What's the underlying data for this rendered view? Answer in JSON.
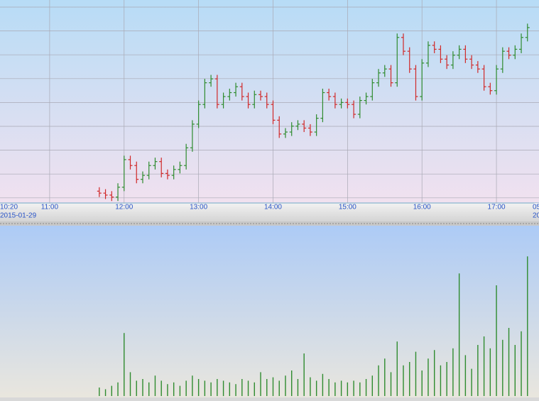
{
  "chart_data": [
    {
      "type": "ohlc",
      "x": [
        "11:40",
        "11:45",
        "11:50",
        "11:55",
        "12:00",
        "12:05",
        "12:10",
        "12:15",
        "12:20",
        "12:25",
        "12:30",
        "12:35",
        "12:40",
        "12:45",
        "12:50",
        "12:55",
        "13:00",
        "13:05",
        "13:10",
        "13:15",
        "13:20",
        "13:25",
        "13:30",
        "13:35",
        "13:40",
        "13:45",
        "13:50",
        "13:55",
        "14:00",
        "14:05",
        "14:10",
        "14:15",
        "14:20",
        "14:25",
        "14:30",
        "14:35",
        "14:40",
        "14:45",
        "14:50",
        "14:55",
        "15:00",
        "15:05",
        "15:10",
        "15:15",
        "15:20",
        "15:25",
        "15:30",
        "15:35",
        "15:40",
        "15:45",
        "15:50",
        "15:55",
        "16:00",
        "16:05",
        "16:10",
        "16:15",
        "16:20",
        "16:25",
        "16:30",
        "16:35",
        "16:40",
        "16:45",
        "16:50",
        "16:55",
        "17:00",
        "17:05",
        "17:10",
        "17:15",
        "17:20",
        "17:25"
      ],
      "open": [
        3,
        2,
        1,
        0,
        5,
        19,
        16,
        9,
        11,
        16,
        18,
        12,
        11,
        14,
        16,
        25,
        37,
        47,
        58,
        60,
        47,
        51,
        53,
        56,
        51,
        47,
        52,
        51,
        47,
        39,
        32,
        33,
        36,
        37,
        35,
        33,
        40,
        53,
        51,
        47,
        48,
        47,
        42,
        49,
        51,
        58,
        63,
        65,
        58,
        81,
        74,
        65,
        51,
        68,
        77,
        75,
        70,
        67,
        72,
        75,
        70,
        67,
        65,
        56,
        54,
        65,
        74,
        72,
        75,
        81
      ],
      "high": [
        5,
        4,
        3,
        7,
        21,
        21,
        18,
        13,
        18,
        20,
        20,
        14,
        16,
        18,
        27,
        39,
        49,
        60,
        62,
        62,
        53,
        55,
        58,
        58,
        53,
        54,
        54,
        53,
        49,
        41,
        35,
        38,
        39,
        39,
        37,
        42,
        55,
        55,
        53,
        50,
        50,
        49,
        51,
        53,
        60,
        65,
        67,
        67,
        83,
        83,
        76,
        67,
        70,
        79,
        79,
        77,
        72,
        74,
        77,
        77,
        72,
        69,
        67,
        58,
        67,
        76,
        76,
        77,
        83,
        88
      ],
      "low": [
        0,
        -1,
        -2,
        -2,
        3,
        14,
        7,
        7,
        9,
        14,
        10,
        9,
        9,
        12,
        14,
        23,
        35,
        45,
        56,
        45,
        45,
        49,
        51,
        49,
        45,
        45,
        49,
        45,
        37,
        30,
        30,
        31,
        34,
        33,
        31,
        31,
        38,
        49,
        45,
        45,
        45,
        40,
        40,
        47,
        49,
        56,
        61,
        56,
        56,
        72,
        63,
        49,
        49,
        66,
        73,
        68,
        65,
        65,
        70,
        68,
        65,
        63,
        54,
        52,
        52,
        63,
        70,
        70,
        73,
        79
      ],
      "close": [
        2,
        1,
        0,
        5,
        19,
        16,
        9,
        11,
        16,
        18,
        12,
        11,
        14,
        16,
        25,
        37,
        47,
        58,
        60,
        47,
        51,
        53,
        56,
        51,
        47,
        52,
        51,
        47,
        39,
        32,
        33,
        36,
        37,
        35,
        33,
        40,
        53,
        51,
        47,
        48,
        47,
        42,
        49,
        51,
        58,
        63,
        65,
        58,
        81,
        74,
        65,
        51,
        68,
        77,
        75,
        70,
        67,
        72,
        75,
        70,
        67,
        65,
        56,
        54,
        65,
        74,
        72,
        75,
        81,
        86
      ],
      "up_color": "#2e8b2e",
      "down_color": "#d02828",
      "ylim": [
        -3,
        100
      ],
      "xlim": [
        "10:20",
        "17:32"
      ],
      "xticks": [
        "10:20",
        "11:00",
        "12:00",
        "13:00",
        "14:00",
        "15:00",
        "16:00",
        "17:00"
      ],
      "x_edge_label": "05",
      "date_labels": [
        "2015-01-29",
        "20"
      ],
      "grid": true
    },
    {
      "type": "volume",
      "x": [
        "11:40",
        "11:45",
        "11:50",
        "11:55",
        "12:00",
        "12:05",
        "12:10",
        "12:15",
        "12:20",
        "12:25",
        "12:30",
        "12:35",
        "12:40",
        "12:45",
        "12:50",
        "12:55",
        "13:00",
        "13:05",
        "13:10",
        "13:15",
        "13:20",
        "13:25",
        "13:30",
        "13:35",
        "13:40",
        "13:45",
        "13:50",
        "13:55",
        "14:00",
        "14:05",
        "14:10",
        "14:15",
        "14:20",
        "14:25",
        "14:30",
        "14:35",
        "14:40",
        "14:45",
        "14:50",
        "14:55",
        "15:00",
        "15:05",
        "15:10",
        "15:15",
        "15:20",
        "15:25",
        "15:30",
        "15:35",
        "15:40",
        "15:45",
        "15:50",
        "15:55",
        "16:00",
        "16:05",
        "16:10",
        "16:15",
        "16:20",
        "16:25",
        "16:30",
        "16:35",
        "16:40",
        "16:45",
        "16:50",
        "16:55",
        "17:00",
        "17:05",
        "17:10",
        "17:15",
        "17:20",
        "17:25"
      ],
      "values": [
        5,
        4,
        6,
        8,
        37,
        14,
        9,
        10,
        8,
        12,
        9,
        7,
        8,
        6,
        9,
        12,
        10,
        9,
        8,
        10,
        9,
        8,
        7,
        10,
        9,
        8,
        14,
        10,
        11,
        9,
        12,
        15,
        10,
        25,
        11,
        9,
        13,
        10,
        8,
        9,
        8,
        9,
        8,
        10,
        12,
        18,
        22,
        14,
        32,
        18,
        20,
        26,
        15,
        22,
        27,
        18,
        20,
        28,
        72,
        24,
        16,
        30,
        35,
        28,
        65,
        33,
        40,
        30,
        38,
        82
      ],
      "color": "#2e8b2e",
      "ylim": [
        0,
        100
      ],
      "xlim": [
        "10:20",
        "17:32"
      ]
    }
  ]
}
